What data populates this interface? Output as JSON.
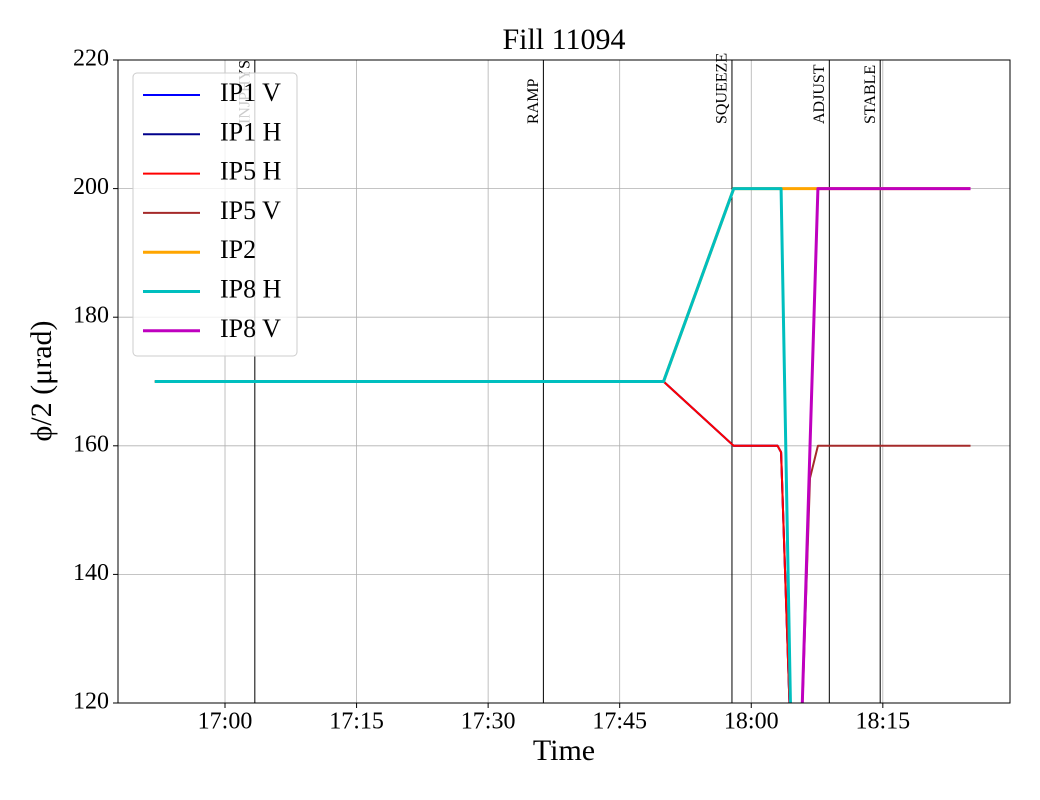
{
  "chart_data": {
    "type": "line",
    "title": "Fill 11094",
    "x_label": "Time",
    "y_label": "ϕ/2 (μrad)",
    "xlim": [
      1007.8,
      1109.5
    ],
    "ylim": [
      120,
      220
    ],
    "xticks": [
      {
        "value": 1020,
        "label": "17:00"
      },
      {
        "value": 1035,
        "label": "17:15"
      },
      {
        "value": 1050,
        "label": "17:30"
      },
      {
        "value": 1065,
        "label": "17:45"
      },
      {
        "value": 1080,
        "label": "18:00"
      },
      {
        "value": 1095,
        "label": "18:15"
      }
    ],
    "yticks": [
      120,
      140,
      160,
      180,
      200,
      220
    ],
    "grid": true,
    "legend": "upper left",
    "x": [
      1012,
      1070,
      1078,
      1083,
      1083.4,
      1084.6,
      1085.6,
      1086.7,
      1087.6,
      1105
    ],
    "series": [
      {
        "name": "IP1 V",
        "color": "#0000ff",
        "width": 2,
        "values": [
          170,
          170,
          160,
          160,
          159,
          110,
          null,
          null,
          null,
          null
        ]
      },
      {
        "name": "IP1 H",
        "color": "#00008b",
        "width": 2,
        "values": [
          170,
          170,
          160,
          160,
          159,
          110,
          null,
          null,
          null,
          null
        ]
      },
      {
        "name": "IP5 H",
        "color": "#ff0000",
        "width": 2,
        "values": [
          170,
          170,
          160,
          160,
          159,
          110,
          null,
          null,
          null,
          null
        ]
      },
      {
        "name": "IP5 V",
        "color": "#a52a2a",
        "width": 2,
        "values": [
          null,
          null,
          null,
          null,
          null,
          null,
          110,
          155,
          160,
          160
        ]
      },
      {
        "name": "IP2",
        "color": "#ffa500",
        "width": 3,
        "values": [
          170,
          170,
          200,
          200,
          200,
          200,
          200,
          200,
          200,
          200
        ]
      },
      {
        "name": "IP8 H",
        "color": "#00bfbf",
        "width": 3,
        "values": [
          170,
          170,
          200,
          200,
          200,
          110,
          null,
          null,
          null,
          null
        ]
      },
      {
        "name": "IP8 V",
        "color": "#bf00bf",
        "width": 3,
        "values": [
          null,
          null,
          null,
          null,
          null,
          null,
          110,
          160,
          200,
          200
        ]
      }
    ],
    "annotations": [
      {
        "x": 1023.4,
        "label": "INJPHYS"
      },
      {
        "x": 1056.3,
        "label": "RAMP"
      },
      {
        "x": 1077.8,
        "label": "SQUEEZE"
      },
      {
        "x": 1088.9,
        "label": "ADJUST"
      },
      {
        "x": 1094.7,
        "label": "STABLE"
      }
    ]
  }
}
